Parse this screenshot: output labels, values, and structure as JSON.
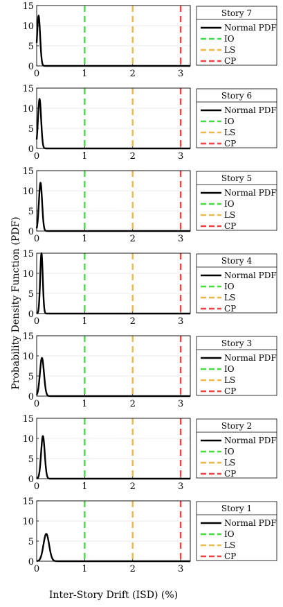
{
  "figure": {
    "ylabel": "Probability Density Function (PDF)",
    "xlabel": "Inter-Story Drift (ISD) (%)"
  },
  "legend_entries": [
    {
      "key": "pdf",
      "label": "Normal PDF",
      "color": "#000000",
      "style": "solid"
    },
    {
      "key": "io",
      "label": "IO",
      "color": "#44DD44",
      "style": "dashed"
    },
    {
      "key": "ls",
      "label": "LS",
      "color": "#EBB84A",
      "style": "dashed"
    },
    {
      "key": "cp",
      "label": "CP",
      "color": "#EE4444",
      "style": "dashed"
    }
  ],
  "chart_data": [
    {
      "type": "line",
      "title": "Story 7",
      "xlim": [
        0,
        3.2
      ],
      "ylim": [
        0,
        15
      ],
      "xticks": [
        "0",
        "1",
        "2",
        "3"
      ],
      "yticks": [
        "0",
        "5",
        "10",
        "15"
      ],
      "pdf": {
        "mean": 0.04,
        "peak": 12.5
      },
      "io": 1,
      "ls": 2,
      "cp": 3
    },
    {
      "type": "line",
      "title": "Story 6",
      "xlim": [
        0,
        3.2
      ],
      "ylim": [
        0,
        15
      ],
      "xticks": [
        "0",
        "1",
        "2",
        "3"
      ],
      "yticks": [
        "0",
        "5",
        "10",
        "15"
      ],
      "pdf": {
        "mean": 0.06,
        "peak": 12.3
      },
      "io": 1,
      "ls": 2,
      "cp": 3
    },
    {
      "type": "line",
      "title": "Story 5",
      "xlim": [
        0,
        3.2
      ],
      "ylim": [
        0,
        15
      ],
      "xticks": [
        "0",
        "1",
        "2",
        "3"
      ],
      "yticks": [
        "0",
        "5",
        "10",
        "15"
      ],
      "pdf": {
        "mean": 0.08,
        "peak": 12.0
      },
      "io": 1,
      "ls": 2,
      "cp": 3
    },
    {
      "type": "line",
      "title": "Story 4",
      "xlim": [
        0,
        3.2
      ],
      "ylim": [
        0,
        15
      ],
      "xticks": [
        "0",
        "1",
        "2",
        "3"
      ],
      "yticks": [
        "0",
        "5",
        "10",
        "15"
      ],
      "pdf": {
        "mean": 0.1,
        "peak": 15.0
      },
      "io": 1,
      "ls": 2,
      "cp": 3
    },
    {
      "type": "line",
      "title": "Story 3",
      "xlim": [
        0,
        3.2
      ],
      "ylim": [
        0,
        15
      ],
      "xticks": [
        "0",
        "1",
        "2",
        "3"
      ],
      "yticks": [
        "0",
        "5",
        "10",
        "15"
      ],
      "pdf": {
        "mean": 0.11,
        "peak": 9.5
      },
      "io": 1,
      "ls": 2,
      "cp": 3
    },
    {
      "type": "line",
      "title": "Story 2",
      "xlim": [
        0,
        3.2
      ],
      "ylim": [
        0,
        15
      ],
      "xticks": [
        "0",
        "1",
        "2",
        "3"
      ],
      "yticks": [
        "0",
        "5",
        "10",
        "15"
      ],
      "pdf": {
        "mean": 0.13,
        "peak": 10.6
      },
      "io": 1,
      "ls": 2,
      "cp": 3
    },
    {
      "type": "line",
      "title": "Story 1",
      "xlim": [
        0,
        3.2
      ],
      "ylim": [
        0,
        15
      ],
      "xticks": [
        "0",
        "1",
        "2",
        "3"
      ],
      "yticks": [
        "0",
        "5",
        "10",
        "15"
      ],
      "pdf": {
        "mean": 0.2,
        "peak": 6.8
      },
      "io": 1,
      "ls": 2,
      "cp": 3
    }
  ]
}
